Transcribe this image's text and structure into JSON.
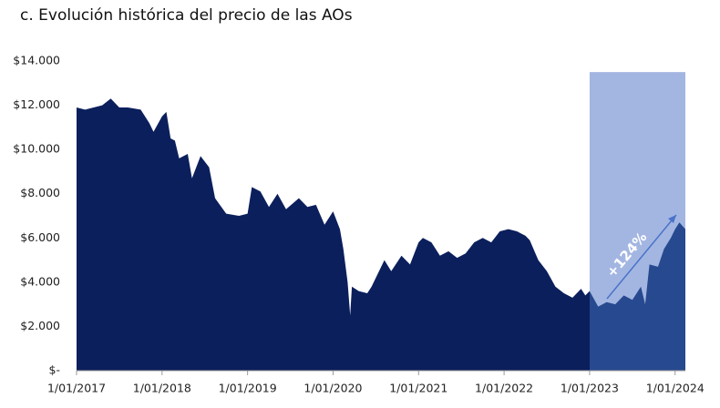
{
  "chart_data": {
    "type": "area",
    "title": "c.  Evolución histórica del precio de las AOs",
    "color": "#0b1f5c",
    "highlight_color": "#a3b6e2",
    "highlight_area_color": "#27498f",
    "x": [
      2017.0,
      2017.1,
      2017.2,
      2017.3,
      2017.4,
      2017.5,
      2017.6,
      2017.75,
      2017.85,
      2017.9,
      2018.0,
      2018.05,
      2018.1,
      2018.15,
      2018.2,
      2018.3,
      2018.35,
      2018.45,
      2018.55,
      2018.62,
      2018.75,
      2018.9,
      2019.0,
      2019.05,
      2019.15,
      2019.25,
      2019.35,
      2019.45,
      2019.6,
      2019.7,
      2019.8,
      2019.9,
      2020.0,
      2020.08,
      2020.12,
      2020.17,
      2020.2,
      2020.22,
      2020.3,
      2020.4,
      2020.45,
      2020.6,
      2020.68,
      2020.8,
      2020.9,
      2021.0,
      2021.05,
      2021.15,
      2021.25,
      2021.35,
      2021.45,
      2021.55,
      2021.65,
      2021.75,
      2021.85,
      2021.95,
      2022.05,
      2022.15,
      2022.25,
      2022.3,
      2022.4,
      2022.5,
      2022.6,
      2022.7,
      2022.8,
      2022.9,
      2022.95,
      2023.0,
      2023.1,
      2023.2,
      2023.3,
      2023.4,
      2023.5,
      2023.6,
      2023.65,
      2023.7,
      2023.8,
      2023.87,
      2023.95,
      2024.0,
      2024.05,
      2024.12
    ],
    "values": [
      11900,
      11800,
      11900,
      12000,
      12300,
      11900,
      11900,
      11800,
      11200,
      10800,
      11500,
      11700,
      10500,
      10400,
      9600,
      9800,
      8700,
      9700,
      9200,
      7800,
      7100,
      7000,
      7100,
      8300,
      8100,
      7400,
      8000,
      7300,
      7800,
      7400,
      7500,
      6600,
      7200,
      6400,
      5500,
      4000,
      2500,
      3800,
      3600,
      3500,
      3800,
      5000,
      4500,
      5200,
      4800,
      5800,
      6000,
      5800,
      5200,
      5400,
      5100,
      5300,
      5800,
      6000,
      5800,
      6300,
      6400,
      6300,
      6100,
      5900,
      5000,
      4500,
      3800,
      3500,
      3300,
      3700,
      3400,
      3600,
      2900,
      3100,
      3000,
      3400,
      3200,
      3800,
      3000,
      4800,
      4700,
      5500,
      6000,
      6400,
      6700,
      6400
    ],
    "xlim": [
      2017,
      2024.12
    ],
    "xticks": [
      {
        "value": 2017,
        "label": "1/01/2017"
      },
      {
        "value": 2018,
        "label": "1/01/2018"
      },
      {
        "value": 2019,
        "label": "1/01/2019"
      },
      {
        "value": 2020,
        "label": "1/01/2020"
      },
      {
        "value": 2021,
        "label": "1/01/2021"
      },
      {
        "value": 2022,
        "label": "1/01/2022"
      },
      {
        "value": 2023,
        "label": "1/01/2023"
      },
      {
        "value": 2024,
        "label": "1/01/2024"
      }
    ],
    "ylim": [
      0,
      14000
    ],
    "yticks": [
      {
        "value": 0,
        "label": "$-"
      },
      {
        "value": 2000,
        "label": "$2.000"
      },
      {
        "value": 4000,
        "label": "$4.000"
      },
      {
        "value": 6000,
        "label": "$6.000"
      },
      {
        "value": 8000,
        "label": "$8.000"
      },
      {
        "value": 10000,
        "label": "$10.000"
      },
      {
        "value": 12000,
        "label": "$12.000"
      },
      {
        "value": 14000,
        "label": "$14.000"
      }
    ],
    "highlight": {
      "x": [
        2023,
        2024.12
      ],
      "y": 13500
    },
    "annotation": "+124%"
  }
}
